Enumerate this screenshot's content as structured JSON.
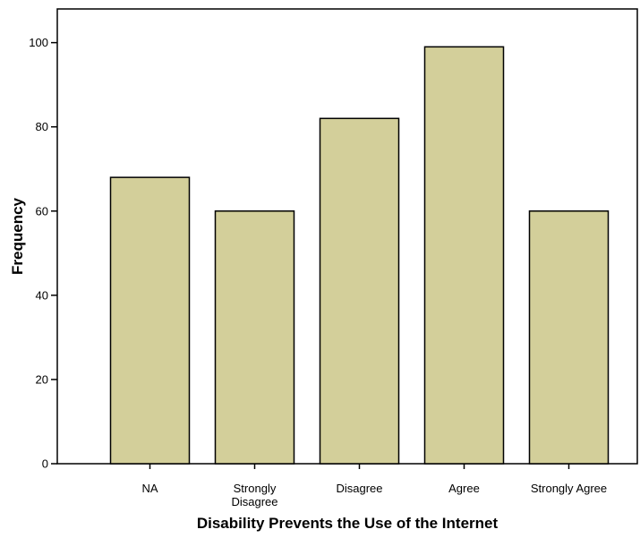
{
  "chart_data": {
    "type": "bar",
    "categories": [
      "NA",
      "Strongly Disagree",
      "Disagree",
      "Agree",
      "Strongly Agree"
    ],
    "category_lines": [
      [
        "NA"
      ],
      [
        "Strongly",
        "Disagree"
      ],
      [
        "Disagree"
      ],
      [
        "Agree"
      ],
      [
        "Strongly Agree"
      ]
    ],
    "values": [
      68,
      60,
      82,
      99,
      60
    ],
    "xlabel": "Disability Prevents the Use of the Internet",
    "ylabel": "Frequency",
    "ylim": [
      0,
      108
    ],
    "yticks": [
      0,
      20,
      40,
      60,
      80,
      100
    ],
    "grid": false,
    "legend": "none",
    "bar_color": "#d3cf9a",
    "bar_edge_color": "#000000"
  }
}
